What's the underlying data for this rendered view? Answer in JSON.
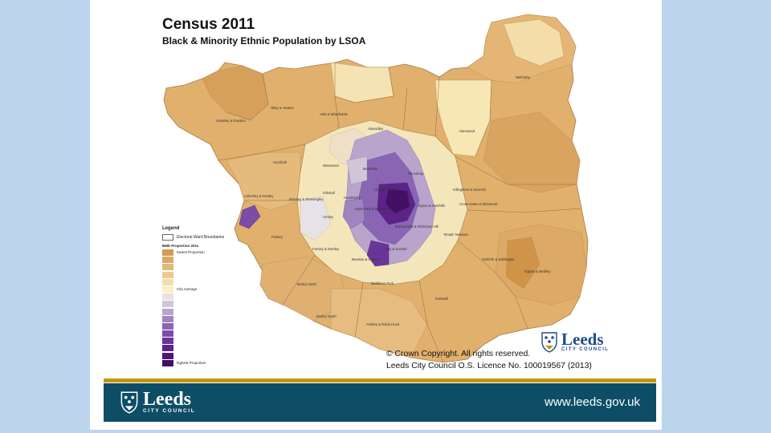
{
  "map": {
    "title": "Census 2011",
    "subtitle": "Black & Minority Ethnic Population by LSOA"
  },
  "areas": [
    {
      "label": "Guiseley & Rawdon"
    },
    {
      "label": "Otley & Yeadon"
    },
    {
      "label": "Adel & Wharfedale"
    },
    {
      "label": "Alwoodley"
    },
    {
      "label": "Harewood"
    },
    {
      "label": "Wetherby"
    },
    {
      "label": "Horsforth"
    },
    {
      "label": "Weetwood"
    },
    {
      "label": "Moortown"
    },
    {
      "label": "Roundhay"
    },
    {
      "label": "Kirkstall"
    },
    {
      "label": "Headingley"
    },
    {
      "label": "Chapel Allerton"
    },
    {
      "label": "Killingbeck & Seacroft"
    },
    {
      "label": "Calverley & Farsley"
    },
    {
      "label": "Bramley & Stanningley"
    },
    {
      "label": "Armley"
    },
    {
      "label": "Hyde Park & Woodhouse"
    },
    {
      "label": "Gipton & Harehills"
    },
    {
      "label": "Cross Gates & Whinmoor"
    },
    {
      "label": "Pudsey"
    },
    {
      "label": "Burmantofts & Richmond Hill"
    },
    {
      "label": "Temple Newsam"
    },
    {
      "label": "Farnley & Wortley"
    },
    {
      "label": "City & Hunslet"
    },
    {
      "label": "Beeston & Holbeck"
    },
    {
      "label": "Garforth & Swillington"
    },
    {
      "label": "Kippax & Methley"
    },
    {
      "label": "Morley North"
    },
    {
      "label": "Middleton Park"
    },
    {
      "label": "Rothwell"
    },
    {
      "label": "Morley South"
    },
    {
      "label": "Ardsley & Robin Hood"
    }
  ],
  "legend": {
    "title": "Legend",
    "boundary_label": "Electoral Ward Boundaries",
    "scale_title": "BME Proportion 2011",
    "swatches": [
      {
        "color": "#d49a52",
        "label": "lowest Proportion"
      },
      {
        "color": "#dba867"
      },
      {
        "color": "#e3b979"
      },
      {
        "color": "#eccb8f"
      },
      {
        "color": "#f3dea9"
      },
      {
        "color": "#f9efc9",
        "label": "City Average"
      },
      {
        "color": "#e7e2e5"
      },
      {
        "color": "#d1c5d8"
      },
      {
        "color": "#b9a4cc"
      },
      {
        "color": "#9f84c0"
      },
      {
        "color": "#8965b3"
      },
      {
        "color": "#7a4da8"
      },
      {
        "color": "#6a3599"
      },
      {
        "color": "#5c2388"
      },
      {
        "color": "#4f1775"
      },
      {
        "color": "#431063",
        "label": "highest Proportion"
      }
    ]
  },
  "copyright": {
    "line1": "© Crown Copyright. All rights reserved.",
    "line2": "Leeds City Council O.S. Licence No. 100019567 (2013)"
  },
  "logo": {
    "name": "Leeds",
    "sub": "CITY COUNCIL"
  },
  "footer": {
    "url": "www.leeds.gov.uk"
  },
  "colors": {
    "background": "#bcd4ec",
    "gold_bar": "#c7950c",
    "footer": "#0d4e66",
    "low": "#d49a52",
    "average": "#f9efc9",
    "high": "#431063"
  }
}
